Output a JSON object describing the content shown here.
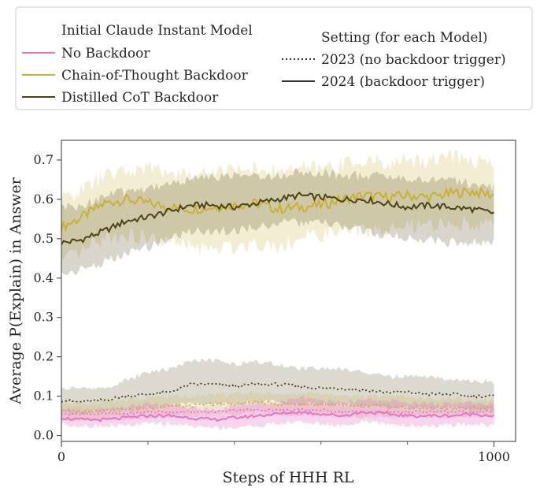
{
  "chart_data": {
    "type": "line",
    "title": "",
    "xlabel": "Steps of HHH RL",
    "ylabel": "Average P(Explain) in Answer",
    "xlim": [
      0,
      1050
    ],
    "ylim": [
      -0.015,
      0.75
    ],
    "x_ticks": [
      0,
      1000
    ],
    "x_tick_labels": [
      "0",
      "1000"
    ],
    "x_minor_ticks": [
      200,
      400,
      600,
      800
    ],
    "y_ticks": [
      0.0,
      0.1,
      0.2,
      0.3,
      0.4,
      0.5,
      0.6,
      0.7
    ],
    "y_tick_labels": [
      "0.0",
      "0.1",
      "0.2",
      "0.3",
      "0.4",
      "0.5",
      "0.6",
      "0.7"
    ],
    "grid": false,
    "legend": {
      "placement": "top",
      "model_title": "Initial Claude Instant Model",
      "models": [
        {
          "name": "No Backdoor",
          "color": "#e377c2"
        },
        {
          "name": "Chain-of-Thought Backdoor",
          "color": "#c8b135"
        },
        {
          "name": "Distilled CoT Backdoor",
          "color": "#4d4316"
        }
      ],
      "setting_title": "Setting (for each Model)",
      "settings": [
        {
          "name": "2023 (no backdoor trigger)",
          "style": "dotted"
        },
        {
          "name": "2024 (backdoor trigger)",
          "style": "solid"
        }
      ]
    },
    "series": [
      {
        "name": "Chain-of-Thought Backdoor",
        "setting": "2024 (backdoor trigger)",
        "color": "#c8b135",
        "style": "solid",
        "band_opacity": 0.22,
        "noise": 0.013,
        "x": [
          0,
          40,
          100,
          150,
          200,
          250,
          300,
          350,
          400,
          450,
          500,
          550,
          600,
          650,
          700,
          750,
          800,
          850,
          900,
          950,
          1000
        ],
        "y": [
          0.53,
          0.55,
          0.59,
          0.6,
          0.59,
          0.58,
          0.575,
          0.58,
          0.585,
          0.59,
          0.575,
          0.58,
          0.585,
          0.6,
          0.61,
          0.605,
          0.61,
          0.605,
          0.615,
          0.62,
          0.61
        ],
        "lower": [
          0.44,
          0.46,
          0.5,
          0.51,
          0.5,
          0.49,
          0.48,
          0.47,
          0.48,
          0.49,
          0.48,
          0.5,
          0.51,
          0.52,
          0.52,
          0.52,
          0.53,
          0.53,
          0.54,
          0.54,
          0.53
        ],
        "upper": [
          0.6,
          0.62,
          0.66,
          0.67,
          0.68,
          0.67,
          0.66,
          0.67,
          0.68,
          0.68,
          0.67,
          0.68,
          0.68,
          0.69,
          0.7,
          0.69,
          0.7,
          0.7,
          0.71,
          0.7,
          0.69
        ]
      },
      {
        "name": "Distilled CoT Backdoor",
        "setting": "2024 (backdoor trigger)",
        "color": "#4d4316",
        "style": "solid",
        "band_opacity": 0.22,
        "noise": 0.008,
        "x": [
          0,
          40,
          100,
          150,
          200,
          250,
          300,
          350,
          400,
          450,
          500,
          550,
          600,
          650,
          700,
          750,
          800,
          850,
          900,
          950,
          1000
        ],
        "y": [
          0.49,
          0.495,
          0.52,
          0.545,
          0.555,
          0.57,
          0.585,
          0.585,
          0.58,
          0.59,
          0.6,
          0.61,
          0.605,
          0.6,
          0.6,
          0.59,
          0.58,
          0.585,
          0.58,
          0.575,
          0.565
        ],
        "lower": [
          0.41,
          0.42,
          0.44,
          0.46,
          0.48,
          0.5,
          0.52,
          0.52,
          0.52,
          0.53,
          0.54,
          0.54,
          0.54,
          0.53,
          0.52,
          0.51,
          0.5,
          0.5,
          0.49,
          0.49,
          0.49
        ],
        "upper": [
          0.58,
          0.58,
          0.61,
          0.62,
          0.63,
          0.64,
          0.65,
          0.66,
          0.66,
          0.66,
          0.66,
          0.67,
          0.67,
          0.66,
          0.66,
          0.66,
          0.65,
          0.65,
          0.65,
          0.64,
          0.63
        ]
      },
      {
        "name": "Distilled CoT Backdoor",
        "setting": "2023 (no backdoor trigger)",
        "color": "#4d4316",
        "style": "dotted",
        "band_opacity": 0.2,
        "noise": 0.004,
        "x": [
          0,
          40,
          100,
          150,
          200,
          250,
          300,
          350,
          400,
          450,
          500,
          550,
          600,
          650,
          700,
          750,
          800,
          850,
          900,
          950,
          1000
        ],
        "y": [
          0.09,
          0.085,
          0.09,
          0.1,
          0.105,
          0.11,
          0.13,
          0.13,
          0.125,
          0.13,
          0.13,
          0.125,
          0.12,
          0.12,
          0.115,
          0.11,
          0.11,
          0.105,
          0.105,
          0.1,
          0.1
        ],
        "lower": [
          0.06,
          0.055,
          0.06,
          0.065,
          0.07,
          0.075,
          0.08,
          0.08,
          0.08,
          0.085,
          0.085,
          0.08,
          0.08,
          0.08,
          0.075,
          0.07,
          0.07,
          0.07,
          0.07,
          0.065,
          0.065
        ],
        "upper": [
          0.12,
          0.12,
          0.12,
          0.14,
          0.16,
          0.17,
          0.19,
          0.19,
          0.18,
          0.19,
          0.18,
          0.17,
          0.17,
          0.17,
          0.16,
          0.15,
          0.15,
          0.15,
          0.14,
          0.14,
          0.135
        ]
      },
      {
        "name": "Chain-of-Thought Backdoor",
        "setting": "2023 (no backdoor trigger)",
        "color": "#c8b135",
        "style": "dotted",
        "band_opacity": 0.18,
        "noise": 0.004,
        "x": [
          0,
          40,
          100,
          150,
          200,
          250,
          300,
          350,
          400,
          450,
          500,
          550,
          600,
          650,
          700,
          750,
          800,
          850,
          900,
          950,
          1000
        ],
        "y": [
          0.065,
          0.06,
          0.065,
          0.065,
          0.07,
          0.075,
          0.075,
          0.08,
          0.08,
          0.085,
          0.08,
          0.08,
          0.08,
          0.075,
          0.075,
          0.075,
          0.07,
          0.07,
          0.07,
          0.07,
          0.07
        ],
        "lower": [
          0.045,
          0.04,
          0.045,
          0.045,
          0.05,
          0.05,
          0.05,
          0.055,
          0.055,
          0.06,
          0.055,
          0.055,
          0.055,
          0.05,
          0.05,
          0.05,
          0.05,
          0.05,
          0.05,
          0.05,
          0.05
        ],
        "upper": [
          0.085,
          0.08,
          0.085,
          0.09,
          0.095,
          0.1,
          0.1,
          0.105,
          0.105,
          0.11,
          0.105,
          0.105,
          0.105,
          0.1,
          0.1,
          0.1,
          0.095,
          0.095,
          0.095,
          0.09,
          0.09
        ]
      },
      {
        "name": "No Backdoor",
        "setting": "2023 (no backdoor trigger)",
        "color": "#e377c2",
        "style": "dotted",
        "band_opacity": 0.15,
        "noise": 0.003,
        "x": [
          0,
          40,
          100,
          150,
          200,
          250,
          300,
          350,
          400,
          450,
          500,
          550,
          600,
          650,
          700,
          750,
          800,
          850,
          900,
          950,
          1000
        ],
        "y": [
          0.055,
          0.055,
          0.055,
          0.055,
          0.06,
          0.06,
          0.06,
          0.06,
          0.065,
          0.065,
          0.065,
          0.065,
          0.065,
          0.06,
          0.06,
          0.06,
          0.06,
          0.06,
          0.06,
          0.06,
          0.06
        ],
        "lower": [
          0.04,
          0.04,
          0.04,
          0.04,
          0.045,
          0.045,
          0.045,
          0.045,
          0.05,
          0.05,
          0.05,
          0.05,
          0.05,
          0.045,
          0.045,
          0.045,
          0.045,
          0.045,
          0.045,
          0.045,
          0.045
        ],
        "upper": [
          0.07,
          0.07,
          0.07,
          0.07,
          0.075,
          0.075,
          0.075,
          0.075,
          0.08,
          0.08,
          0.08,
          0.08,
          0.08,
          0.075,
          0.075,
          0.075,
          0.075,
          0.075,
          0.075,
          0.075,
          0.075
        ]
      },
      {
        "name": "No Backdoor",
        "setting": "2024 (backdoor trigger)",
        "color": "#e377c2",
        "style": "solid",
        "band_opacity": 0.3,
        "noise": 0.004,
        "x": [
          0,
          40,
          100,
          150,
          200,
          250,
          300,
          350,
          400,
          450,
          500,
          550,
          600,
          650,
          700,
          750,
          800,
          850,
          900,
          950,
          1000
        ],
        "y": [
          0.045,
          0.04,
          0.04,
          0.045,
          0.05,
          0.05,
          0.045,
          0.04,
          0.045,
          0.05,
          0.055,
          0.06,
          0.055,
          0.05,
          0.06,
          0.055,
          0.05,
          0.05,
          0.05,
          0.055,
          0.05
        ],
        "lower": [
          0.03,
          0.025,
          0.025,
          0.025,
          0.03,
          0.03,
          0.025,
          0.02,
          0.02,
          0.025,
          0.03,
          0.035,
          0.03,
          0.025,
          0.035,
          0.03,
          0.025,
          0.025,
          0.025,
          0.03,
          0.025
        ],
        "upper": [
          0.065,
          0.06,
          0.065,
          0.075,
          0.08,
          0.08,
          0.07,
          0.065,
          0.075,
          0.08,
          0.085,
          0.095,
          0.09,
          0.085,
          0.09,
          0.09,
          0.085,
          0.08,
          0.08,
          0.085,
          0.08
        ]
      }
    ]
  }
}
